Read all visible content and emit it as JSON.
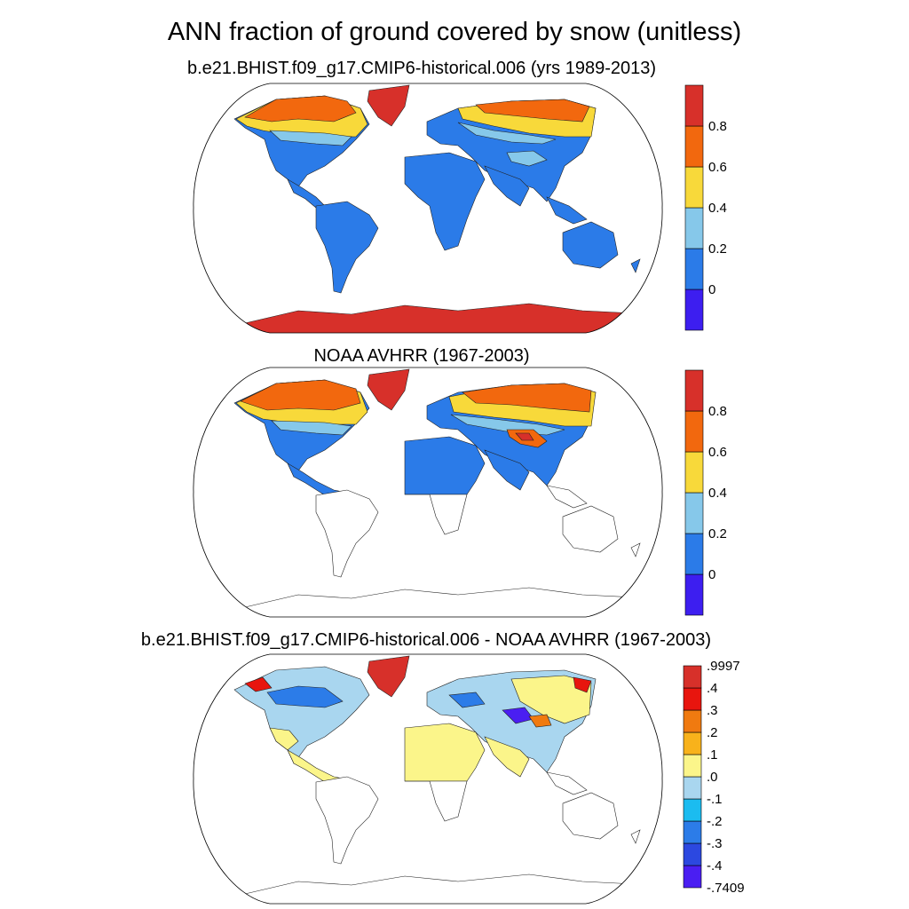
{
  "title": "ANN fraction of ground covered by snow (unitless)",
  "panels": [
    {
      "title": "b.e21.BHIST.f09_g17.CMIP6-historical.006 (yrs 1989-2013)",
      "colorbar": {
        "colors": [
          "#3d1ef0",
          "#2b7be8",
          "#86c8ea",
          "#f8d93a",
          "#f2680e",
          "#d7302a"
        ],
        "labels": [
          "0",
          "0.2",
          "0.4",
          "0.6",
          "0.8"
        ]
      }
    },
    {
      "title": "NOAA AVHRR (1967-2003)",
      "colorbar": {
        "colors": [
          "#3d1ef0",
          "#2b7be8",
          "#86c8ea",
          "#f8d93a",
          "#f2680e",
          "#d7302a"
        ],
        "labels": [
          "0",
          "0.2",
          "0.4",
          "0.6",
          "0.8"
        ]
      }
    },
    {
      "title": "b.e21.BHIST.f09_g17.CMIP6-historical.006 - NOAA AVHRR (1967-2003)",
      "colorbar": {
        "colors": [
          "#4a1ef2",
          "#2c48e0",
          "#2c7ce8",
          "#1bbcf0",
          "#a9d6ef",
          "#fbf58a",
          "#f8b21b",
          "#f07a10",
          "#e8150e",
          "#d7302a"
        ],
        "labels": [
          "-.7409",
          "-.4",
          "-.3",
          "-.2",
          "-.1",
          ".0",
          ".1",
          ".2",
          ".3",
          ".4",
          ".9997"
        ]
      }
    }
  ]
}
